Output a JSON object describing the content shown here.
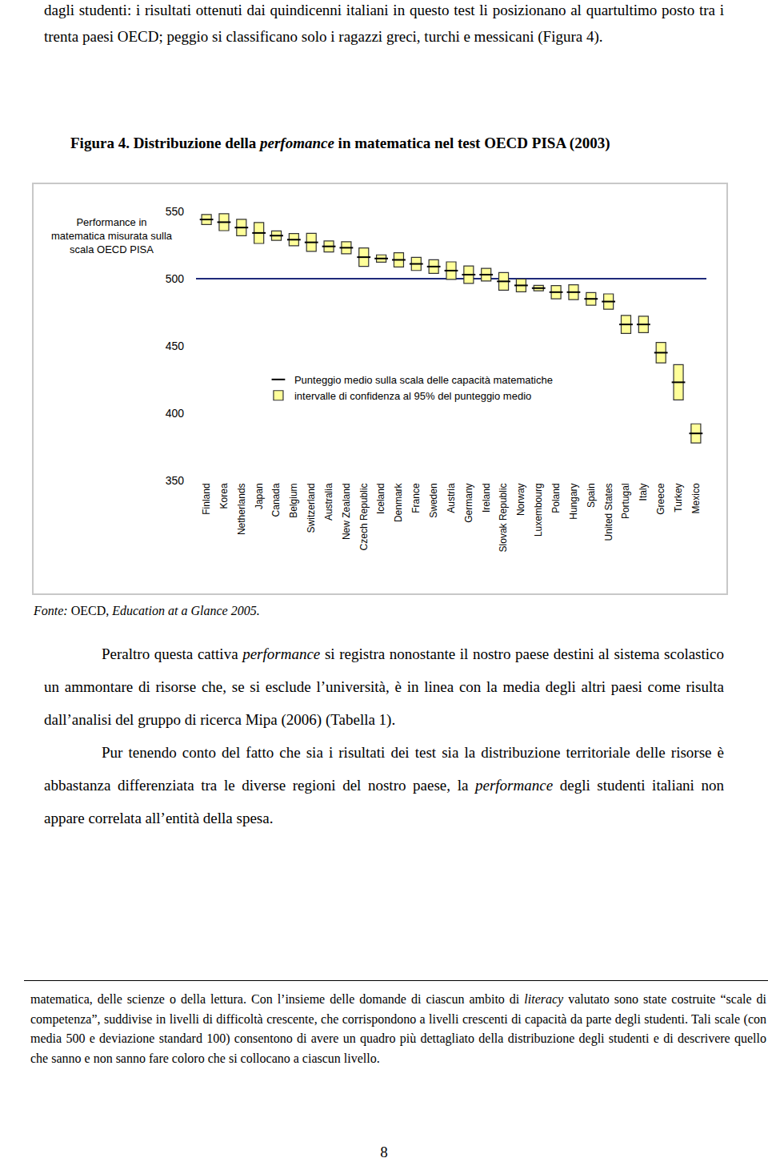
{
  "intro": [
    {
      "text": "dagli studenti: i risultati ottenuti dai quindicenni italiani in questo test li posizionano al quartultimo posto tra i trenta paesi OECD; peggio si classificano solo i ragazzi greci, turchi e messicani (Figura 4)."
    }
  ],
  "figure_title": [
    {
      "text": "Figura 4. Distribuzione della "
    },
    {
      "text": "perfomance",
      "italic": true
    },
    {
      "text": " in matematica nel test OECD PISA (2003)"
    }
  ],
  "chart_data": {
    "type": "range",
    "y_label": [
      "Performance in",
      "matematica misurata sulla",
      "scala OECD PISA"
    ],
    "categories": [
      "Finland",
      "Korea",
      "Netherlands",
      "Japan",
      "Canada",
      "Belgium",
      "Switzerland",
      "Australia",
      "New Zealand",
      "Czech Republic",
      "Iceland",
      "Denmark",
      "France",
      "Sweden",
      "Austria",
      "Germany",
      "Ireland",
      "Slovak Republic",
      "Norway",
      "Luxembourg",
      "Poland",
      "Hungary",
      "Spain",
      "United States",
      "Portugal",
      "Italy",
      "Greece",
      "Turkey",
      "Mexico"
    ],
    "series": [
      {
        "name": "Punteggio medio sulla scala delle capacità matematiche",
        "type": "scatter",
        "marker": "line-ew",
        "color": "#000000",
        "values": [
          544,
          542,
          538,
          534,
          532,
          529,
          527,
          524,
          523,
          516,
          515,
          514,
          511,
          509,
          506,
          503,
          503,
          498,
          495,
          493,
          490,
          490,
          485,
          483,
          466,
          466,
          445,
          423,
          385
        ]
      },
      {
        "name": "intervalle di confidenza al 95% del punteggio medio",
        "type": "bar",
        "color": "#ffff99",
        "low": [
          540.3,
          535.7,
          531.9,
          526.2,
          528.5,
          524.5,
          520.3,
          519.9,
          518.5,
          509.1,
          512.3,
          508.7,
          506.1,
          503.9,
          499.5,
          496.5,
          498.3,
          491.5,
          490.3,
          491.0,
          485.1,
          484.5,
          480.3,
          477.3,
          459.3,
          459.9,
          437.4,
          409.9,
          377.9
        ],
        "high": [
          547.7,
          548.3,
          544.1,
          541.8,
          535.5,
          533.5,
          533.7,
          528.1,
          527.5,
          522.9,
          517.7,
          519.3,
          515.9,
          514.1,
          512.5,
          509.5,
          507.7,
          504.5,
          499.7,
          495.0,
          494.9,
          495.5,
          489.7,
          488.7,
          472.7,
          472.1,
          452.6,
          436.1,
          392.1
        ]
      }
    ],
    "reference_value": 500,
    "ylim": [
      350,
      550
    ],
    "yticks": [
      350,
      400,
      450,
      500,
      550
    ],
    "grid": false,
    "legend": "center"
  },
  "source": [
    {
      "text": "Fonte:",
      "italic": true
    },
    {
      "text": " OECD, "
    },
    {
      "text": "Education at a Glance 2005.",
      "italic": true
    }
  ],
  "paragraphs": [
    [
      {
        "text": "Peraltro questa cattiva "
      },
      {
        "text": "performance",
        "italic": true
      },
      {
        "text": " si registra nonostante il nostro paese destini al sistema scolastico un ammontare di risorse che, se si esclude l’università, è in linea con la media degli altri  paesi come risulta dall’analisi del gruppo di ricerca Mipa (2006) (Tabella 1)."
      }
    ],
    [
      {
        "text": "Pur tenendo conto del fatto che sia i risultati dei test sia la distribuzione territoriale delle risorse è abbastanza differenziata tra le diverse regioni del nostro paese, la "
      },
      {
        "text": "performance",
        "italic": true
      },
      {
        "text": " degli studenti italiani non appare correlata all’entità della spesa."
      }
    ]
  ],
  "footnote": [
    {
      "text": "matematica, delle scienze o della lettura. Con l’insieme delle domande di ciascun ambito di "
    },
    {
      "text": "literacy",
      "italic": true
    },
    {
      "text": " valutato sono state costruite “scale di competenza”, suddivise in livelli di difficoltà crescente, che corrispondono a livelli crescenti di capacità da parte degli studenti. Tali scale (con media 500 e deviazione standard 100) consentono di avere un quadro più dettagliato della distribuzione degli studenti e di descrivere quello che sanno e non sanno fare coloro che si collocano a ciascun livello."
    }
  ],
  "page_number": "8"
}
